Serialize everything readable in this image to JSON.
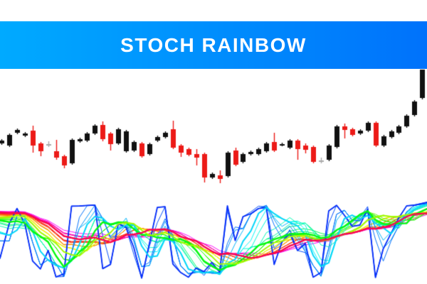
{
  "header": {
    "title": "STOCH RAINBOW",
    "gradient_from": "#00AAFF",
    "gradient_to": "#0072FB",
    "text_color": "#FFFFFF"
  },
  "chart_data": [
    {
      "type": "candlestick",
      "title": "STOCH RAINBOW",
      "xlabel": "",
      "ylabel": "",
      "grid": false,
      "x_count": 55,
      "ylim": [
        30,
        200
      ],
      "colors": {
        "up": "#111111",
        "down": "#EC1A17",
        "doji": "#A9A9A9"
      },
      "ohlc": [
        [
          88,
          94,
          86,
          92
        ],
        [
          85,
          102,
          83,
          100
        ],
        [
          103,
          109,
          101,
          107
        ],
        [
          99,
          104,
          97,
          102
        ],
        [
          106,
          113,
          75,
          85
        ],
        [
          88,
          90,
          70,
          77
        ],
        [
          87,
          91,
          83,
          87
        ],
        [
          77,
          93,
          65,
          68
        ],
        [
          70,
          72,
          53,
          57
        ],
        [
          60,
          95,
          58,
          93
        ],
        [
          91,
          96,
          89,
          94
        ],
        [
          92,
          104,
          90,
          102
        ],
        [
          102,
          115,
          100,
          113
        ],
        [
          114,
          119,
          91,
          94
        ],
        [
          102,
          104,
          78,
          87
        ],
        [
          88,
          110,
          86,
          108
        ],
        [
          77,
          107,
          75,
          105
        ],
        [
          78,
          92,
          76,
          90
        ],
        [
          88,
          90,
          68,
          70
        ],
        [
          73,
          89,
          71,
          87
        ],
        [
          92,
          99,
          90,
          97
        ],
        [
          97,
          105,
          95,
          103
        ],
        [
          108,
          120,
          80,
          82
        ],
        [
          85,
          87,
          69,
          75
        ],
        [
          80,
          82,
          70,
          72
        ],
        [
          73,
          80,
          57,
          68
        ],
        [
          73,
          75,
          33,
          40
        ],
        [
          40,
          47,
          38,
          45
        ],
        [
          43,
          50,
          32,
          38
        ],
        [
          42,
          77,
          40,
          75
        ],
        [
          78,
          82,
          56,
          58
        ],
        [
          62,
          75,
          60,
          73
        ],
        [
          73,
          78,
          71,
          76
        ],
        [
          73,
          82,
          71,
          80
        ],
        [
          77,
          90,
          75,
          88
        ],
        [
          90,
          103,
          76,
          78
        ],
        [
          86,
          89,
          84,
          87
        ],
        [
          82,
          94,
          80,
          92
        ],
        [
          92,
          94,
          65,
          80
        ],
        [
          85,
          88,
          74,
          79
        ],
        [
          83,
          85,
          60,
          62
        ],
        [
          64,
          68,
          60,
          64
        ],
        [
          65,
          87,
          63,
          85
        ],
        [
          83,
          114,
          81,
          112
        ],
        [
          112,
          116,
          95,
          107
        ],
        [
          108,
          110,
          98,
          100
        ],
        [
          102,
          108,
          100,
          106
        ],
        [
          106,
          119,
          104,
          117
        ],
        [
          117,
          119,
          83,
          85
        ],
        [
          85,
          100,
          83,
          98
        ],
        [
          97,
          107,
          95,
          105
        ],
        [
          103,
          114,
          101,
          112
        ],
        [
          112,
          129,
          110,
          127
        ],
        [
          128,
          149,
          126,
          147
        ],
        [
          152,
          192,
          150,
          192
        ]
      ]
    },
    {
      "type": "line",
      "indicator": "stochastic-rainbow-fan",
      "legend": "none",
      "grid": false,
      "line_count": 36,
      "period_min": 4,
      "period_max": 39,
      "value_range": [
        0,
        100
      ],
      "hue_start": 230,
      "hue_end": -60,
      "emphasis_indices": [
        0,
        5,
        13,
        18,
        30
      ]
    }
  ]
}
